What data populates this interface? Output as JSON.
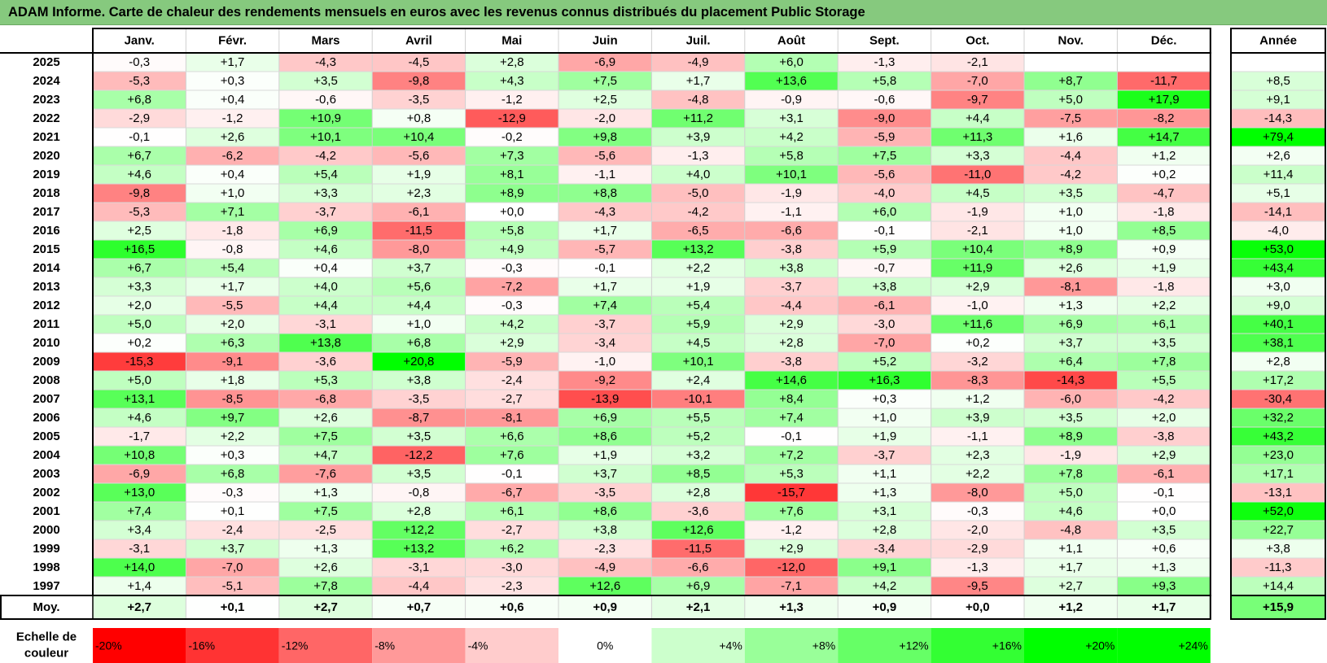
{
  "title": "ADAM Informe. Carte de chaleur des rendements mensuels en euros avec les revenus connus distribués du placement Public Storage",
  "chart_data": {
    "type": "heatmap",
    "months": [
      "Janv.",
      "Févr.",
      "Mars",
      "Avril",
      "Mai",
      "Juin",
      "Juil.",
      "Août",
      "Sept.",
      "Oct.",
      "Nov.",
      "Déc."
    ],
    "year_header": "Année",
    "avg_label": "Moy.",
    "rows": [
      {
        "year": "2025",
        "values": [
          -0.3,
          1.7,
          -4.3,
          -4.5,
          2.8,
          -6.9,
          -4.9,
          6.0,
          -1.3,
          -2.1,
          null,
          null
        ],
        "annual": null
      },
      {
        "year": "2024",
        "values": [
          -5.3,
          0.3,
          3.5,
          -9.8,
          4.3,
          7.5,
          1.7,
          13.6,
          5.8,
          -7.0,
          8.7,
          -11.7
        ],
        "annual": 8.5
      },
      {
        "year": "2023",
        "values": [
          6.8,
          0.4,
          -0.6,
          -3.5,
          -1.2,
          2.5,
          -4.8,
          -0.9,
          -0.6,
          -9.7,
          5.0,
          17.9
        ],
        "annual": 9.1
      },
      {
        "year": "2022",
        "values": [
          -2.9,
          -1.2,
          10.9,
          0.8,
          -12.9,
          -2.0,
          11.2,
          3.1,
          -9.0,
          4.4,
          -7.5,
          -8.2
        ],
        "annual": -14.3
      },
      {
        "year": "2021",
        "values": [
          -0.1,
          2.6,
          10.1,
          10.4,
          -0.2,
          9.8,
          3.9,
          4.2,
          -5.9,
          11.3,
          1.6,
          14.7
        ],
        "annual": 79.4
      },
      {
        "year": "2020",
        "values": [
          6.7,
          -6.2,
          -4.2,
          -5.6,
          7.3,
          -5.6,
          -1.3,
          5.8,
          7.5,
          3.3,
          -4.4,
          1.2
        ],
        "annual": 2.6
      },
      {
        "year": "2019",
        "values": [
          4.6,
          0.4,
          5.4,
          1.9,
          8.1,
          -1.1,
          4.0,
          10.1,
          -5.6,
          -11.0,
          -4.2,
          0.2
        ],
        "annual": 11.4
      },
      {
        "year": "2018",
        "values": [
          -9.8,
          1.0,
          3.3,
          2.3,
          8.9,
          8.8,
          -5.0,
          -1.9,
          -4.0,
          4.5,
          3.5,
          -4.7
        ],
        "annual": 5.1
      },
      {
        "year": "2017",
        "values": [
          -5.3,
          7.1,
          -3.7,
          -6.1,
          0.0,
          -4.3,
          -4.2,
          -1.1,
          6.0,
          -1.9,
          1.0,
          -1.8
        ],
        "annual": -14.1
      },
      {
        "year": "2016",
        "values": [
          2.5,
          -1.8,
          6.9,
          -11.5,
          5.8,
          1.7,
          -6.5,
          -6.6,
          -0.1,
          -2.1,
          1.0,
          8.5
        ],
        "annual": -4.0
      },
      {
        "year": "2015",
        "values": [
          16.5,
          -0.8,
          4.6,
          -8.0,
          4.9,
          -5.7,
          13.2,
          -3.8,
          5.9,
          10.4,
          8.9,
          0.9
        ],
        "annual": 53.0
      },
      {
        "year": "2014",
        "values": [
          6.7,
          5.4,
          0.4,
          3.7,
          -0.3,
          -0.1,
          2.2,
          3.8,
          -0.7,
          11.9,
          2.6,
          1.9
        ],
        "annual": 43.4
      },
      {
        "year": "2013",
        "values": [
          3.3,
          1.7,
          4.0,
          5.6,
          -7.2,
          1.7,
          1.9,
          -3.7,
          3.8,
          2.9,
          -8.1,
          -1.8
        ],
        "annual": 3.0
      },
      {
        "year": "2012",
        "values": [
          2.0,
          -5.5,
          4.4,
          4.4,
          -0.3,
          7.4,
          5.4,
          -4.4,
          -6.1,
          -1.0,
          1.3,
          2.2
        ],
        "annual": 9.0
      },
      {
        "year": "2011",
        "values": [
          5.0,
          2.0,
          -3.1,
          1.0,
          4.2,
          -3.7,
          5.9,
          2.9,
          -3.0,
          11.6,
          6.9,
          6.1
        ],
        "annual": 40.1
      },
      {
        "year": "2010",
        "values": [
          0.2,
          6.3,
          13.8,
          6.8,
          2.9,
          -3.4,
          4.5,
          2.8,
          -7.0,
          0.2,
          3.7,
          3.5
        ],
        "annual": 38.1
      },
      {
        "year": "2009",
        "values": [
          -15.3,
          -9.1,
          -3.6,
          20.8,
          -5.9,
          -1.0,
          10.1,
          -3.8,
          5.2,
          -3.2,
          6.4,
          7.8
        ],
        "annual": 2.8
      },
      {
        "year": "2008",
        "values": [
          5.0,
          1.8,
          5.3,
          3.8,
          -2.4,
          -9.2,
          2.4,
          14.6,
          16.3,
          -8.3,
          -14.3,
          5.5
        ],
        "annual": 17.2
      },
      {
        "year": "2007",
        "values": [
          13.1,
          -8.5,
          -6.8,
          -3.5,
          -2.7,
          -13.9,
          -10.1,
          8.4,
          0.3,
          1.2,
          -6.0,
          -4.2
        ],
        "annual": -30.4
      },
      {
        "year": "2006",
        "values": [
          4.6,
          9.7,
          2.6,
          -8.7,
          -8.1,
          6.9,
          5.5,
          7.4,
          1.0,
          3.9,
          3.5,
          2.0
        ],
        "annual": 32.2
      },
      {
        "year": "2005",
        "values": [
          -1.7,
          2.2,
          7.5,
          3.5,
          6.6,
          8.6,
          5.2,
          -0.1,
          1.9,
          -1.1,
          8.9,
          -3.8
        ],
        "annual": 43.2
      },
      {
        "year": "2004",
        "values": [
          10.8,
          0.3,
          4.7,
          -12.2,
          7.6,
          1.9,
          3.2,
          7.2,
          -3.7,
          2.3,
          -1.9,
          2.9
        ],
        "annual": 23.0
      },
      {
        "year": "2003",
        "values": [
          -6.9,
          6.8,
          -7.6,
          3.5,
          -0.1,
          3.7,
          8.5,
          5.3,
          1.1,
          2.2,
          7.8,
          -6.1
        ],
        "annual": 17.1
      },
      {
        "year": "2002",
        "values": [
          13.0,
          -0.3,
          1.3,
          -0.8,
          -6.7,
          -3.5,
          2.8,
          -15.7,
          1.3,
          -8.0,
          5.0,
          -0.1
        ],
        "annual": -13.1
      },
      {
        "year": "2001",
        "values": [
          7.4,
          0.1,
          7.5,
          2.8,
          6.1,
          8.6,
          -3.6,
          7.6,
          3.1,
          -0.3,
          4.6,
          0.0
        ],
        "annual": 52.0
      },
      {
        "year": "2000",
        "values": [
          3.4,
          -2.4,
          -2.5,
          12.2,
          -2.7,
          3.8,
          12.6,
          -1.2,
          2.8,
          -2.0,
          -4.8,
          3.5
        ],
        "annual": 22.7
      },
      {
        "year": "1999",
        "values": [
          -3.1,
          3.7,
          1.3,
          13.2,
          6.2,
          -2.3,
          -11.5,
          2.9,
          -3.4,
          -2.9,
          1.1,
          0.6
        ],
        "annual": 3.8
      },
      {
        "year": "1998",
        "values": [
          14.0,
          -7.0,
          2.6,
          -3.1,
          -3.0,
          -4.9,
          -6.6,
          -12.0,
          9.1,
          -1.3,
          1.7,
          1.3
        ],
        "annual": -11.3
      },
      {
        "year": "1997",
        "values": [
          1.4,
          -5.1,
          7.8,
          -4.4,
          -2.3,
          12.6,
          6.9,
          -7.1,
          4.2,
          -9.5,
          2.7,
          9.3
        ],
        "annual": 14.4
      }
    ],
    "average": {
      "values": [
        2.7,
        0.1,
        2.7,
        0.7,
        0.6,
        0.9,
        2.1,
        1.3,
        0.9,
        0.0,
        1.2,
        1.7
      ],
      "annual": 15.9
    },
    "scale": {
      "label_line1": "Echelle de",
      "label_line2": "couleur",
      "stops": [
        -20,
        -16,
        -12,
        -8,
        -4,
        0,
        4,
        8,
        12,
        16,
        20,
        24
      ],
      "labels": [
        "-20%",
        "-16%",
        "-12%",
        "-8%",
        "-4%",
        "0%",
        "+4%",
        "+8%",
        "+12%",
        "+16%",
        "+20%",
        "+24%"
      ]
    },
    "colors": {
      "negative_max": "#ff0000",
      "neutral": "#ffffff",
      "positive_max": "#00ff00",
      "header_bg": "#86c97e"
    }
  }
}
